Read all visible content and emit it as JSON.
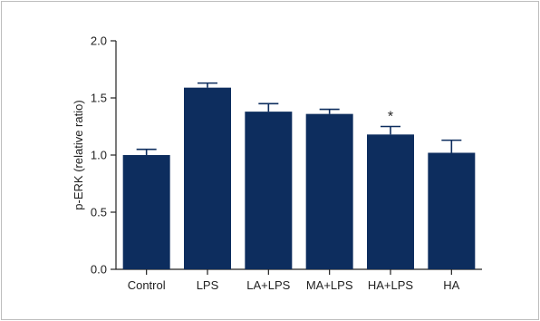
{
  "chart_data": {
    "type": "bar",
    "title": "",
    "xlabel": "",
    "ylabel": "p-ERK (relative ratio)",
    "ylim": [
      0,
      2.0
    ],
    "yticks": [
      "0.0",
      "0.5",
      "1.0",
      "1.5",
      "2.0"
    ],
    "categories": [
      "Control",
      "LPS",
      "LA+LPS",
      "MA+LPS",
      "HA+LPS",
      "HA"
    ],
    "values": [
      1.0,
      1.59,
      1.38,
      1.36,
      1.18,
      1.02
    ],
    "error": [
      0.05,
      0.04,
      0.07,
      0.04,
      0.07,
      0.11
    ],
    "annotations": [
      {
        "category": "HA+LPS",
        "text": "*"
      }
    ],
    "bar_color": "#0d2d5e",
    "grid": false,
    "legend": "none"
  }
}
